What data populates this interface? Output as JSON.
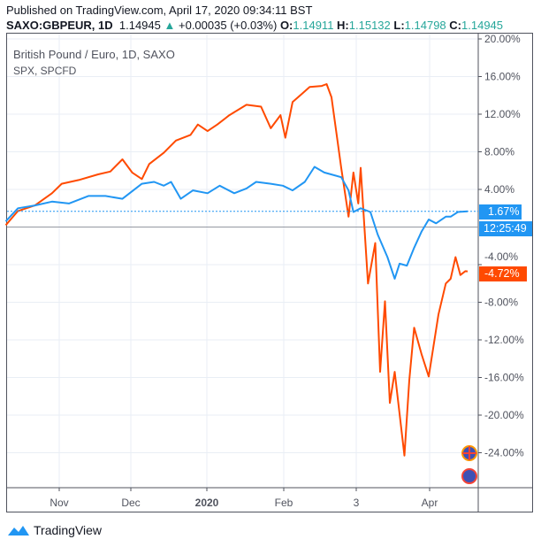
{
  "header": {
    "published": "Published on TradingView.com, April 17, 2020 09:34:11 BST",
    "symbol": "SAXO:GBPEUR, 1D",
    "last": "1.14945",
    "change": "+0.00035 (+0.03%)",
    "o_label": "O:",
    "o": "1.14911",
    "h_label": "H:",
    "h": "1.15132",
    "l_label": "L:",
    "l": "1.14798",
    "c_label": "C:",
    "c": "1.14945",
    "up_icon": "triangle-up-icon"
  },
  "legend": {
    "main": "British Pound / Euro, 1D, SAXO",
    "compare": "SPX, SPCFD"
  },
  "tags": {
    "spx": "1.67%",
    "countdown": "12:25:49",
    "gbpeur": "-4.72%"
  },
  "footer": {
    "brand": "TradingView"
  },
  "colors": {
    "gbpeur": "#ff4a00",
    "spx": "#2196f3",
    "positive": "#26a69a"
  },
  "chart_data": {
    "type": "line",
    "y_unit": "percent change",
    "ylim": [
      -28,
      20
    ],
    "y_ticks": [
      "20.00%",
      "16.00%",
      "12.00%",
      "8.00%",
      "4.00%",
      "-4.00%",
      "-8.00%",
      "-12.00%",
      "-16.00%",
      "-20.00%",
      "-24.00%"
    ],
    "x_ticks": [
      "Nov",
      "Dec",
      "2020",
      "Feb",
      "3",
      "Apr"
    ],
    "grid": true,
    "series": [
      {
        "name": "British Pound / Euro, 1D, SAXO",
        "color": "#ff4a00",
        "points": [
          [
            "2019-10-10",
            0.2
          ],
          [
            "2019-10-15",
            1.7
          ],
          [
            "2019-10-22",
            2.3
          ],
          [
            "2019-10-29",
            3.6
          ],
          [
            "2019-11-02",
            4.6
          ],
          [
            "2019-11-09",
            5.0
          ],
          [
            "2019-11-17",
            5.6
          ],
          [
            "2019-11-22",
            5.9
          ],
          [
            "2019-11-27",
            7.2
          ],
          [
            "2019-12-01",
            5.8
          ],
          [
            "2019-12-05",
            5.1
          ],
          [
            "2019-12-08",
            6.7
          ],
          [
            "2019-12-14",
            7.9
          ],
          [
            "2019-12-19",
            9.2
          ],
          [
            "2019-12-25",
            9.8
          ],
          [
            "2019-12-28",
            10.9
          ],
          [
            "2020-01-01",
            10.2
          ],
          [
            "2020-01-05",
            10.9
          ],
          [
            "2020-01-10",
            11.9
          ],
          [
            "2020-01-17",
            13.0
          ],
          [
            "2020-01-23",
            12.8
          ],
          [
            "2020-01-27",
            10.5
          ],
          [
            "2020-01-31",
            11.9
          ],
          [
            "2020-02-02",
            9.5
          ],
          [
            "2020-02-05",
            13.3
          ],
          [
            "2020-02-09",
            14.2
          ],
          [
            "2020-02-12",
            14.9
          ],
          [
            "2020-02-17",
            15.0
          ],
          [
            "2020-02-19",
            15.2
          ],
          [
            "2020-02-21",
            13.8
          ],
          [
            "2020-02-25",
            6.3
          ],
          [
            "2020-02-28",
            1.1
          ],
          [
            "2020-03-01",
            5.8
          ],
          [
            "2020-03-03",
            2.5
          ],
          [
            "2020-03-04",
            6.3
          ],
          [
            "2020-03-07",
            -6.0
          ],
          [
            "2020-03-10",
            -1.7
          ],
          [
            "2020-03-12",
            -15.4
          ],
          [
            "2020-03-14",
            -7.9
          ],
          [
            "2020-03-16",
            -18.7
          ],
          [
            "2020-03-18",
            -15.4
          ],
          [
            "2020-03-22",
            -24.3
          ],
          [
            "2020-03-24",
            -16.3
          ],
          [
            "2020-03-26",
            -10.7
          ],
          [
            "2020-03-29",
            -13.5
          ],
          [
            "2020-04-01",
            -15.9
          ],
          [
            "2020-04-03",
            -12.6
          ],
          [
            "2020-04-05",
            -9.3
          ],
          [
            "2020-04-08",
            -6.0
          ],
          [
            "2020-04-10",
            -5.5
          ],
          [
            "2020-04-12",
            -3.2
          ],
          [
            "2020-04-14",
            -5.1
          ],
          [
            "2020-04-16",
            -4.7
          ],
          [
            "2020-04-17",
            -4.72
          ]
        ]
      },
      {
        "name": "SPX, SPCFD",
        "color": "#2196f3",
        "points": [
          [
            "2019-10-10",
            0.6
          ],
          [
            "2019-10-15",
            2.0
          ],
          [
            "2019-10-22",
            2.3
          ],
          [
            "2019-10-29",
            2.7
          ],
          [
            "2019-11-05",
            2.5
          ],
          [
            "2019-11-13",
            3.3
          ],
          [
            "2019-11-20",
            3.3
          ],
          [
            "2019-11-27",
            3.0
          ],
          [
            "2019-12-05",
            4.6
          ],
          [
            "2019-12-10",
            4.8
          ],
          [
            "2019-12-14",
            4.4
          ],
          [
            "2019-12-17",
            4.8
          ],
          [
            "2019-12-21",
            3.0
          ],
          [
            "2019-12-26",
            3.9
          ],
          [
            "2020-01-01",
            3.6
          ],
          [
            "2020-01-06",
            4.4
          ],
          [
            "2020-01-12",
            3.6
          ],
          [
            "2020-01-17",
            4.1
          ],
          [
            "2020-01-21",
            4.8
          ],
          [
            "2020-01-27",
            4.6
          ],
          [
            "2020-02-01",
            4.4
          ],
          [
            "2020-02-05",
            3.9
          ],
          [
            "2020-02-10",
            4.8
          ],
          [
            "2020-02-14",
            6.4
          ],
          [
            "2020-02-18",
            5.8
          ],
          [
            "2020-02-25",
            5.3
          ],
          [
            "2020-02-28",
            3.9
          ],
          [
            "2020-03-01",
            1.6
          ],
          [
            "2020-03-04",
            2.0
          ],
          [
            "2020-03-08",
            1.6
          ],
          [
            "2020-03-11",
            -0.8
          ],
          [
            "2020-03-15",
            -3.2
          ],
          [
            "2020-03-18",
            -5.5
          ],
          [
            "2020-03-20",
            -3.9
          ],
          [
            "2020-03-23",
            -4.1
          ],
          [
            "2020-03-26",
            -2.2
          ],
          [
            "2020-03-29",
            -0.5
          ],
          [
            "2020-04-01",
            0.8
          ],
          [
            "2020-04-04",
            0.4
          ],
          [
            "2020-04-08",
            1.1
          ],
          [
            "2020-04-10",
            1.1
          ],
          [
            "2020-04-13",
            1.6
          ],
          [
            "2020-04-17",
            1.67
          ]
        ]
      }
    ]
  }
}
